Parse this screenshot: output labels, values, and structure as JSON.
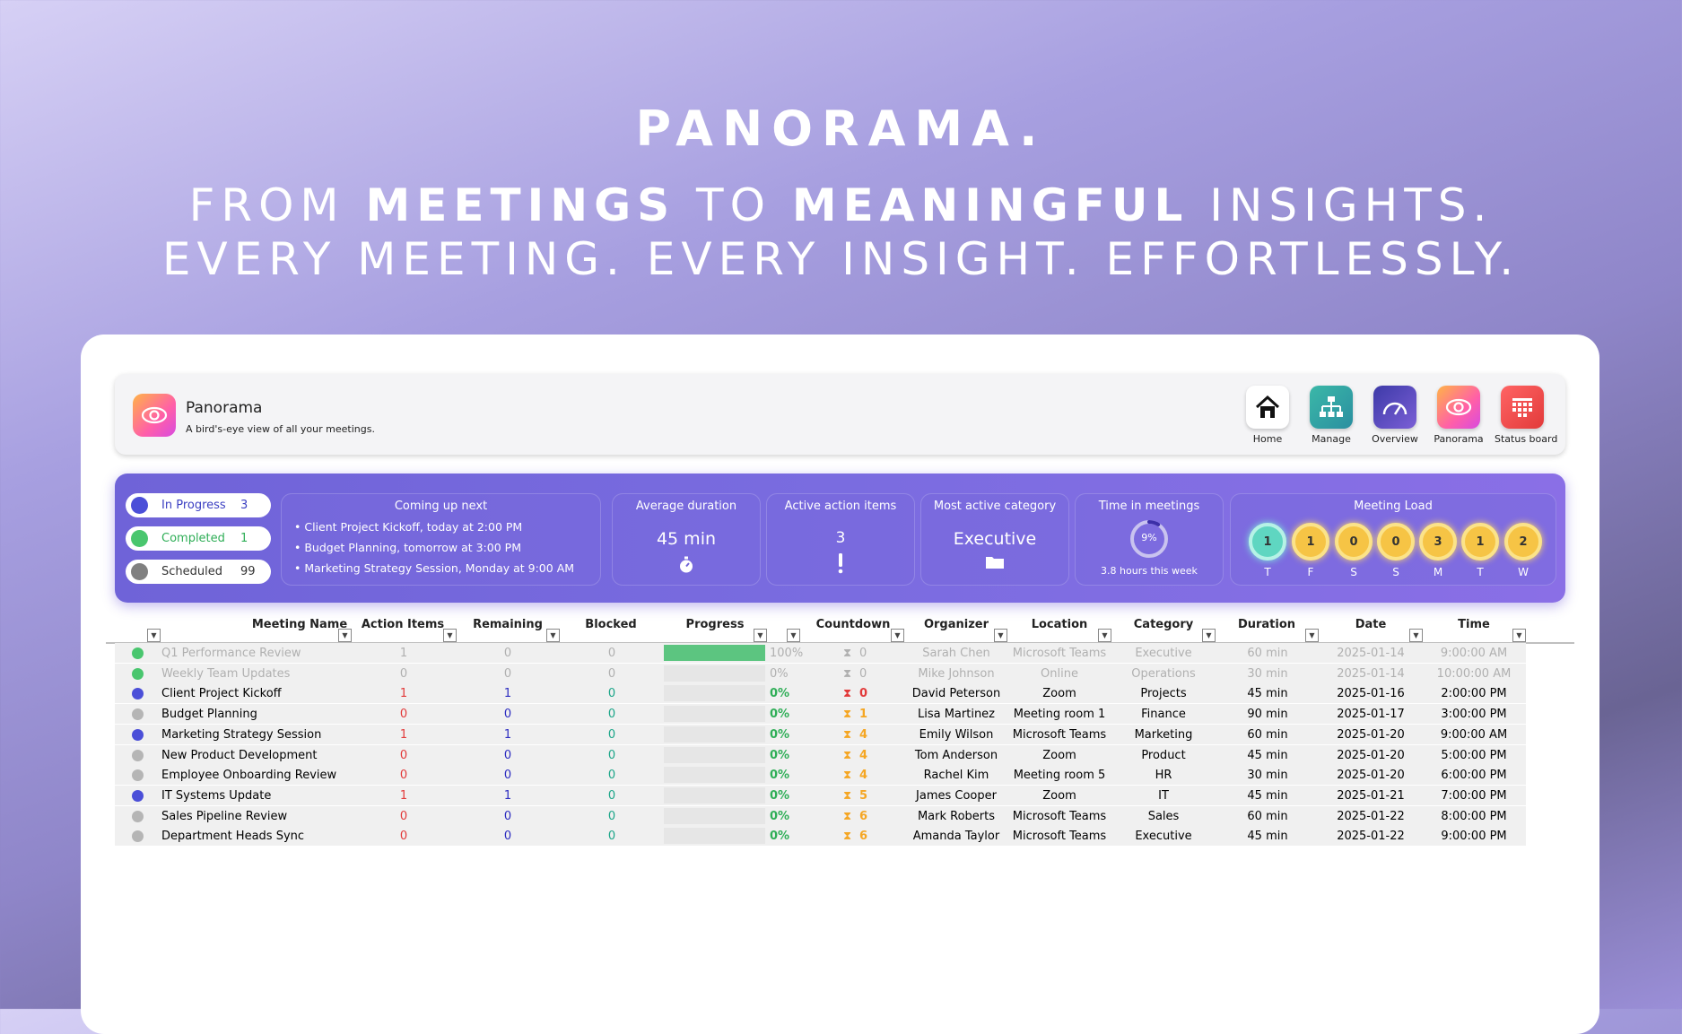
{
  "hero": {
    "line1": "PANORAMA.",
    "line2_a": "FROM ",
    "line2_b": "MEETINGS",
    "line2_c": " TO ",
    "line2_d": "MEANINGFUL",
    "line2_e": " INSIGHTS.",
    "line3": "EVERY MEETING. EVERY INSIGHT. EFFORTLESSLY."
  },
  "header": {
    "title": "Panorama",
    "subtitle": "A bird's-eye view of all your meetings.",
    "nav": [
      {
        "label": "Home",
        "icon": "home-icon",
        "color": "#ffffff"
      },
      {
        "label": "Manage",
        "icon": "org-chart-icon",
        "color": "#2fa6a0"
      },
      {
        "label": "Overview",
        "icon": "gauge-icon",
        "color": "#5b52c9"
      },
      {
        "label": "Panorama",
        "icon": "eye-icon",
        "color": "#ff7a86"
      },
      {
        "label": "Status board",
        "icon": "board-icon",
        "color": "#f24a4a"
      }
    ]
  },
  "summary": {
    "status": [
      {
        "label": "In Progress",
        "count": "3",
        "color": "#4b4fd8",
        "text_color": "#3a3ec2"
      },
      {
        "label": "Completed",
        "count": "1",
        "color": "#49c66e",
        "text_color": "#2fae57"
      },
      {
        "label": "Scheduled",
        "count": "99",
        "color": "#808080",
        "text_color": "#333333"
      }
    ],
    "coming_up": {
      "title": "Coming up next",
      "items": [
        "• Client Project Kickoff, today at 2:00 PM",
        "• Budget Planning, tomorrow at 3:00 PM",
        "• Marketing Strategy Session, Monday at 9:00 AM"
      ]
    },
    "avg_duration": {
      "title": "Average duration",
      "value": "45 min",
      "icon": "stopwatch-icon"
    },
    "active_items": {
      "title": "Active action items",
      "value": "3",
      "icon": "exclamation-icon"
    },
    "category": {
      "title": "Most active category",
      "value": "Executive",
      "icon": "folder-icon"
    },
    "time_in_meetings": {
      "title": "Time in meetings",
      "percent": 9,
      "percent_label": "9%",
      "caption": "3.8 hours this week"
    },
    "meeting_load": {
      "title": "Meeting Load",
      "days": [
        {
          "day": "T",
          "count": "1",
          "today": true
        },
        {
          "day": "F",
          "count": "1",
          "today": false
        },
        {
          "day": "S",
          "count": "0",
          "today": false
        },
        {
          "day": "S",
          "count": "0",
          "today": false
        },
        {
          "day": "M",
          "count": "3",
          "today": false
        },
        {
          "day": "T",
          "count": "1",
          "today": false
        },
        {
          "day": "W",
          "count": "2",
          "today": false
        }
      ]
    }
  },
  "table": {
    "columns": [
      "Meeting Name",
      "Action Items",
      "Remaining",
      "Blocked",
      "Progress",
      "Countdown",
      "Organizer",
      "Location",
      "Category",
      "Duration",
      "Date",
      "Time"
    ],
    "rows": [
      {
        "status": "#49c66e",
        "name": "Q1 Performance Review",
        "actions": "1",
        "remaining": "0",
        "blocked": "0",
        "progress": 100,
        "progress_label": "100%",
        "countdown": "0",
        "organizer": "Sarah Chen",
        "location": "Microsoft Teams",
        "category": "Executive",
        "duration": "60 min",
        "date": "2025-01-14",
        "time": "9:00:00 AM",
        "dim": true
      },
      {
        "status": "#49c66e",
        "name": "Weekly Team Updates",
        "actions": "0",
        "remaining": "0",
        "blocked": "0",
        "progress": 0,
        "progress_label": "0%",
        "countdown": "0",
        "organizer": "Mike Johnson",
        "location": "Online",
        "category": "Operations",
        "duration": "30 min",
        "date": "2025-01-14",
        "time": "10:00:00 AM",
        "dim": true
      },
      {
        "status": "#4b4fd8",
        "name": "Client Project Kickoff",
        "actions": "1",
        "remaining": "1",
        "blocked": "0",
        "progress": 0,
        "progress_label": "0%",
        "countdown": "0",
        "organizer": "David Peterson",
        "location": "Zoom",
        "category": "Projects",
        "duration": "45 min",
        "date": "2025-01-16",
        "time": "2:00:00 PM",
        "dim": false,
        "urgent": true
      },
      {
        "status": "#b5b5b5",
        "name": "Budget Planning",
        "actions": "0",
        "remaining": "0",
        "blocked": "0",
        "progress": 0,
        "progress_label": "0%",
        "countdown": "1",
        "organizer": "Lisa Martinez",
        "location": "Meeting room 1",
        "category": "Finance",
        "duration": "90 min",
        "date": "2025-01-17",
        "time": "3:00:00 PM",
        "dim": false
      },
      {
        "status": "#4b4fd8",
        "name": "Marketing Strategy Session",
        "actions": "1",
        "remaining": "1",
        "blocked": "0",
        "progress": 0,
        "progress_label": "0%",
        "countdown": "4",
        "organizer": "Emily Wilson",
        "location": "Microsoft Teams",
        "category": "Marketing",
        "duration": "60 min",
        "date": "2025-01-20",
        "time": "9:00:00 AM",
        "dim": false
      },
      {
        "status": "#b5b5b5",
        "name": "New Product Development",
        "actions": "0",
        "remaining": "0",
        "blocked": "0",
        "progress": 0,
        "progress_label": "0%",
        "countdown": "4",
        "organizer": "Tom Anderson",
        "location": "Zoom",
        "category": "Product",
        "duration": "45 min",
        "date": "2025-01-20",
        "time": "5:00:00 PM",
        "dim": false
      },
      {
        "status": "#b5b5b5",
        "name": "Employee Onboarding Review",
        "actions": "0",
        "remaining": "0",
        "blocked": "0",
        "progress": 0,
        "progress_label": "0%",
        "countdown": "4",
        "organizer": "Rachel Kim",
        "location": "Meeting room 5",
        "category": "HR",
        "duration": "30 min",
        "date": "2025-01-20",
        "time": "6:00:00 PM",
        "dim": false
      },
      {
        "status": "#4b4fd8",
        "name": "IT Systems Update",
        "actions": "1",
        "remaining": "1",
        "blocked": "0",
        "progress": 0,
        "progress_label": "0%",
        "countdown": "5",
        "organizer": "James Cooper",
        "location": "Zoom",
        "category": "IT",
        "duration": "45 min",
        "date": "2025-01-21",
        "time": "7:00:00 PM",
        "dim": false
      },
      {
        "status": "#b5b5b5",
        "name": "Sales Pipeline Review",
        "actions": "0",
        "remaining": "0",
        "blocked": "0",
        "progress": 0,
        "progress_label": "0%",
        "countdown": "6",
        "organizer": "Mark Roberts",
        "location": "Microsoft Teams",
        "category": "Sales",
        "duration": "60 min",
        "date": "2025-01-22",
        "time": "8:00:00 PM",
        "dim": false
      },
      {
        "status": "#b5b5b5",
        "name": "Department Heads Sync",
        "actions": "0",
        "remaining": "0",
        "blocked": "0",
        "progress": 0,
        "progress_label": "0%",
        "countdown": "6",
        "organizer": "Amanda Taylor",
        "location": "Microsoft Teams",
        "category": "Executive",
        "duration": "45 min",
        "date": "2025-01-22",
        "time": "9:00:00 PM",
        "dim": false
      }
    ]
  }
}
